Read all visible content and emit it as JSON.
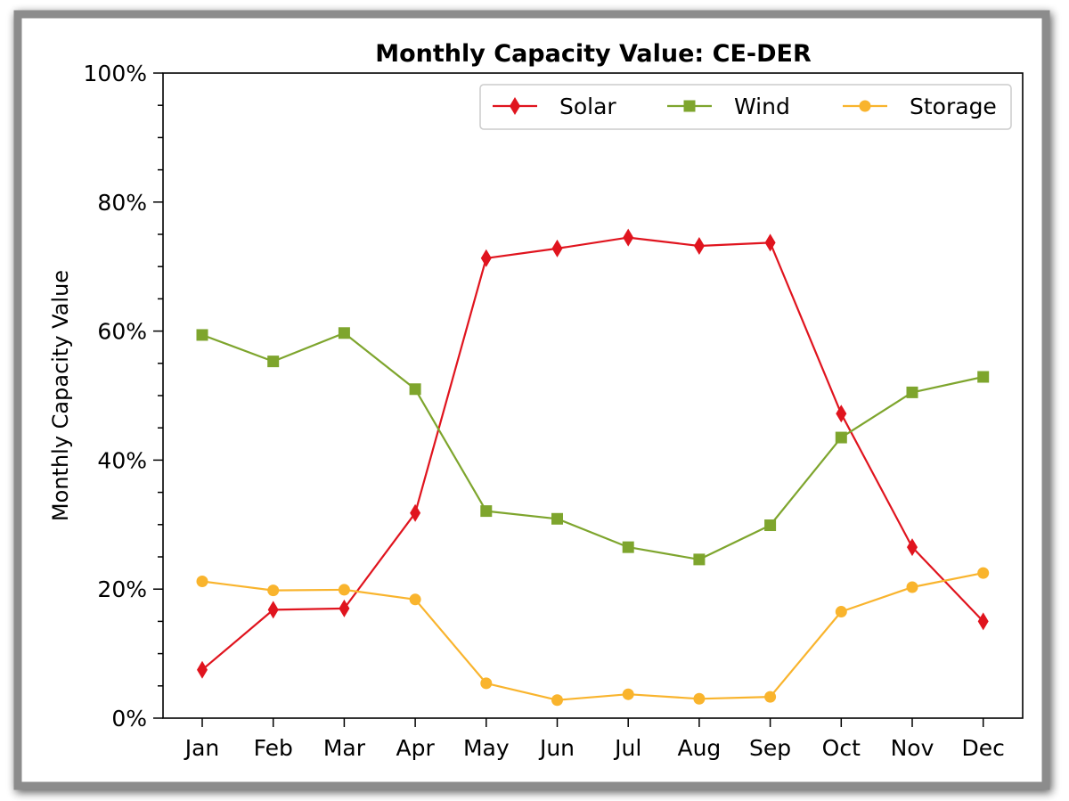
{
  "chart_data": {
    "type": "line",
    "title": "Monthly Capacity Value: CE-DER",
    "xlabel": "",
    "ylabel": "Monthly Capacity Value",
    "categories": [
      "Jan",
      "Feb",
      "Mar",
      "Apr",
      "May",
      "Jun",
      "Jul",
      "Aug",
      "Sep",
      "Oct",
      "Nov",
      "Dec"
    ],
    "ylim": [
      0,
      100
    ],
    "yticks": [
      0,
      20,
      40,
      60,
      80,
      100
    ],
    "ytick_labels": [
      "0%",
      "20%",
      "40%",
      "60%",
      "80%",
      "100%"
    ],
    "grid": false,
    "legend_position": "top-right",
    "series": [
      {
        "name": "Solar",
        "color": "#e0141e",
        "marker": "diamond",
        "values": [
          7.5,
          16.8,
          17.0,
          31.8,
          71.3,
          72.8,
          74.5,
          73.2,
          73.7,
          47.2,
          26.5,
          15.0
        ]
      },
      {
        "name": "Wind",
        "color": "#7ea52d",
        "marker": "square",
        "values": [
          59.4,
          55.3,
          59.7,
          51.0,
          32.1,
          30.9,
          26.5,
          24.6,
          29.9,
          43.5,
          50.5,
          52.9
        ]
      },
      {
        "name": "Storage",
        "color": "#f9b42d",
        "marker": "circle",
        "values": [
          21.2,
          19.8,
          19.9,
          18.4,
          5.4,
          2.8,
          3.7,
          3.0,
          3.3,
          16.5,
          20.3,
          22.5
        ]
      }
    ]
  }
}
